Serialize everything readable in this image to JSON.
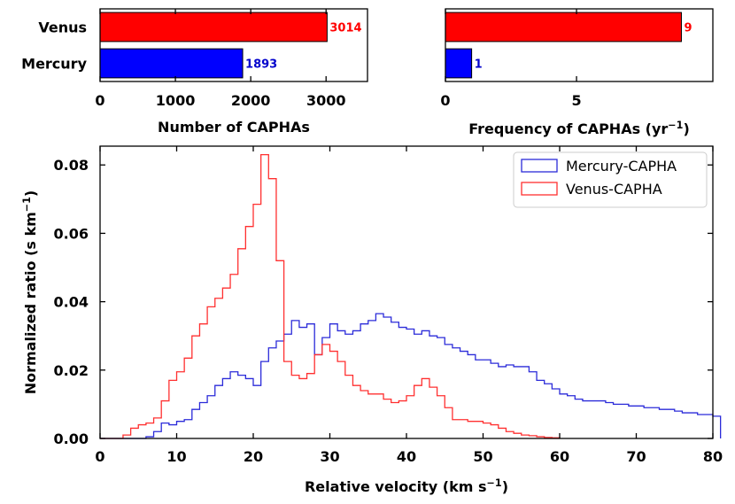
{
  "chart_data": [
    {
      "type": "bar",
      "orientation": "horizontal",
      "categories": [
        "Venus",
        "Mercury"
      ],
      "values": [
        3014,
        1893
      ],
      "colors": [
        "#ff0000",
        "#0000ff"
      ],
      "label_colors": [
        "#ff0000",
        "#0000cc"
      ],
      "value_labels": [
        "3014",
        "1893"
      ],
      "xlabel": "Number of CAPHAs",
      "xlim": [
        0,
        3550
      ],
      "xticks": [
        0,
        1000,
        2000,
        3000
      ],
      "xtick_labels": [
        "0",
        "1000",
        "2000",
        "3000"
      ]
    },
    {
      "type": "bar",
      "orientation": "horizontal",
      "categories": [
        "Venus",
        "Mercury"
      ],
      "values": [
        9,
        1
      ],
      "colors": [
        "#ff0000",
        "#0000ff"
      ],
      "label_colors": [
        "#ff0000",
        "#0000cc"
      ],
      "value_labels": [
        "9",
        "1"
      ],
      "xlabel_main": "Frequency of CAPHAs (yr",
      "xlabel_sup": "−1",
      "xlabel_close": ")",
      "xlim": [
        0,
        10.2
      ],
      "xticks": [
        0,
        5
      ],
      "xtick_labels": [
        "0",
        "5"
      ]
    },
    {
      "type": "histogram-step",
      "xlabel_main": "Relative velocity (km s",
      "xlabel_sup": "−1",
      "xlabel_close": ")",
      "ylabel_main": "Normalized ratio (s km",
      "ylabel_sup": "−1",
      "ylabel_close": ")",
      "xlim": [
        0,
        80
      ],
      "ylim": [
        0,
        0.0855
      ],
      "xticks": [
        0,
        10,
        20,
        30,
        40,
        50,
        60,
        70,
        80
      ],
      "xtick_labels": [
        "0",
        "10",
        "20",
        "30",
        "40",
        "50",
        "60",
        "70",
        "80"
      ],
      "yticks": [
        0,
        0.02,
        0.04,
        0.06,
        0.08
      ],
      "ytick_labels": [
        "0.00",
        "0.02",
        "0.04",
        "0.06",
        "0.08"
      ],
      "legend_position": "top-right",
      "bin_start": 0,
      "bin_width": 1,
      "series": [
        {
          "name": "Mercury-CAPHA",
          "color": "#2b2bd9",
          "values": [
            0,
            0,
            0,
            0,
            0,
            0,
            0.0005,
            0.002,
            0.0045,
            0.004,
            0.005,
            0.0055,
            0.0085,
            0.0105,
            0.0125,
            0.0155,
            0.0175,
            0.0195,
            0.0185,
            0.0175,
            0.0155,
            0.0225,
            0.0265,
            0.0285,
            0.0305,
            0.0345,
            0.0325,
            0.0335,
            0.0245,
            0.0295,
            0.0335,
            0.0315,
            0.0305,
            0.0315,
            0.0335,
            0.0345,
            0.0365,
            0.0355,
            0.034,
            0.0325,
            0.032,
            0.0305,
            0.0315,
            0.03,
            0.0295,
            0.0275,
            0.0265,
            0.0255,
            0.0245,
            0.023,
            0.023,
            0.022,
            0.021,
            0.0215,
            0.021,
            0.021,
            0.0195,
            0.017,
            0.016,
            0.0145,
            0.013,
            0.0125,
            0.0115,
            0.011,
            0.011,
            0.011,
            0.0105,
            0.01,
            0.01,
            0.0095,
            0.0095,
            0.009,
            0.009,
            0.0085,
            0.0085,
            0.008,
            0.0075,
            0.0075,
            0.007,
            0.007,
            0.0065
          ]
        },
        {
          "name": "Venus-CAPHA",
          "color": "#ff3030",
          "values": [
            0,
            0,
            0,
            0.001,
            0.003,
            0.004,
            0.0045,
            0.006,
            0.011,
            0.017,
            0.0195,
            0.0235,
            0.03,
            0.0335,
            0.0385,
            0.041,
            0.044,
            0.048,
            0.0555,
            0.062,
            0.0685,
            0.083,
            0.076,
            0.052,
            0.0225,
            0.0185,
            0.0175,
            0.019,
            0.0245,
            0.0275,
            0.0255,
            0.0225,
            0.0185,
            0.0155,
            0.014,
            0.013,
            0.013,
            0.0115,
            0.0105,
            0.011,
            0.0125,
            0.0155,
            0.0175,
            0.015,
            0.0125,
            0.009,
            0.0055,
            0.0055,
            0.005,
            0.005,
            0.0045,
            0.004,
            0.003,
            0.002,
            0.0015,
            0.001,
            0.0008,
            0.0005,
            0.0003,
            0.0002
          ]
        }
      ]
    }
  ]
}
